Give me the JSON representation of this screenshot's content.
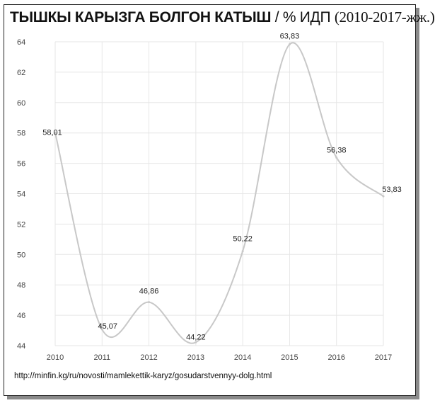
{
  "title": {
    "main": "ТЫШКЫ КАРЫЗГА БОЛГОН КАТЫШ",
    "unit": "/ % ИДП",
    "years": "(2010-2017-жж.)"
  },
  "source": "http://minfin.kg/ru/novosti/mamlekettik-karyz/gosudarstvennyy-dolg.html",
  "chart_data": {
    "type": "line",
    "smooth": true,
    "title": "ТЫШКЫ КАРЫЗГА БОЛГОН КАТЫШ / % ИДП (2010-2017-жж.)",
    "xlabel": "",
    "ylabel": "",
    "x": [
      "2010",
      "2011",
      "2012",
      "2013",
      "2014",
      "2015",
      "2016",
      "2017"
    ],
    "values": [
      58.01,
      45.07,
      46.86,
      44.22,
      50.22,
      63.83,
      56.38,
      53.83
    ],
    "data_labels": [
      "58,01",
      "45,07",
      "46,86",
      "44,22",
      "50,22",
      "63,83",
      "56,38",
      "53,83"
    ],
    "ylim": [
      44,
      64
    ],
    "yticks": [
      44,
      46,
      48,
      50,
      52,
      54,
      56,
      58,
      60,
      62,
      64
    ],
    "grid": true,
    "line_color": "#c8c8c8",
    "grid_color": "#e6e6e6"
  }
}
